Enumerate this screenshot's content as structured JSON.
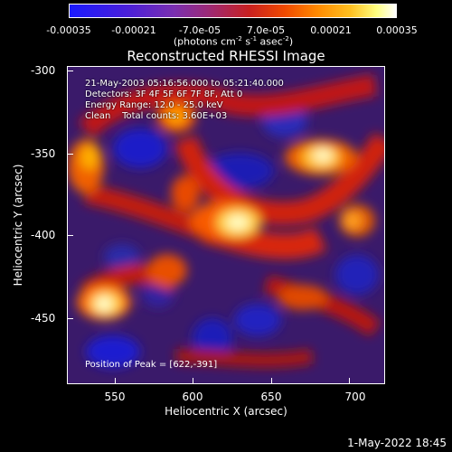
{
  "colorbar": {
    "ticks": [
      "-0.00035",
      "-0.00021",
      "-7.0e-05",
      "7.0e-05",
      "0.00021",
      "0.00035"
    ],
    "units_prefix": "(photons cm",
    "units_exp1": "-2",
    "units_mid1": " s",
    "units_exp2": "-1",
    "units_mid2": " asec",
    "units_exp3": "-2",
    "units_suffix": ")"
  },
  "title": "Reconstructed RHESSI Image",
  "info": {
    "time": "21-May-2003 05:16:56.000 to 05:21:40.000",
    "detectors": "Detectors: 3F 4F 5F 6F 7F 8F, Att 0",
    "energy": "Energy Range: 12.0 - 25.0 keV",
    "clean": "Clean    Total counts: 3.60E+03",
    "peak": "Position of Peak = [622,-391]"
  },
  "axes": {
    "xlabel": "Heliocentric X (arcsec)",
    "ylabel": "Heliocentric Y (arcsec)",
    "xticks": [
      "550",
      "600",
      "650",
      "700"
    ],
    "yticks": [
      "-300",
      "-350",
      "-400",
      "-450"
    ]
  },
  "timestamp": "1-May-2022 18:45",
  "colors": {
    "background": "#000000",
    "map_base": "#3a1a6a"
  }
}
